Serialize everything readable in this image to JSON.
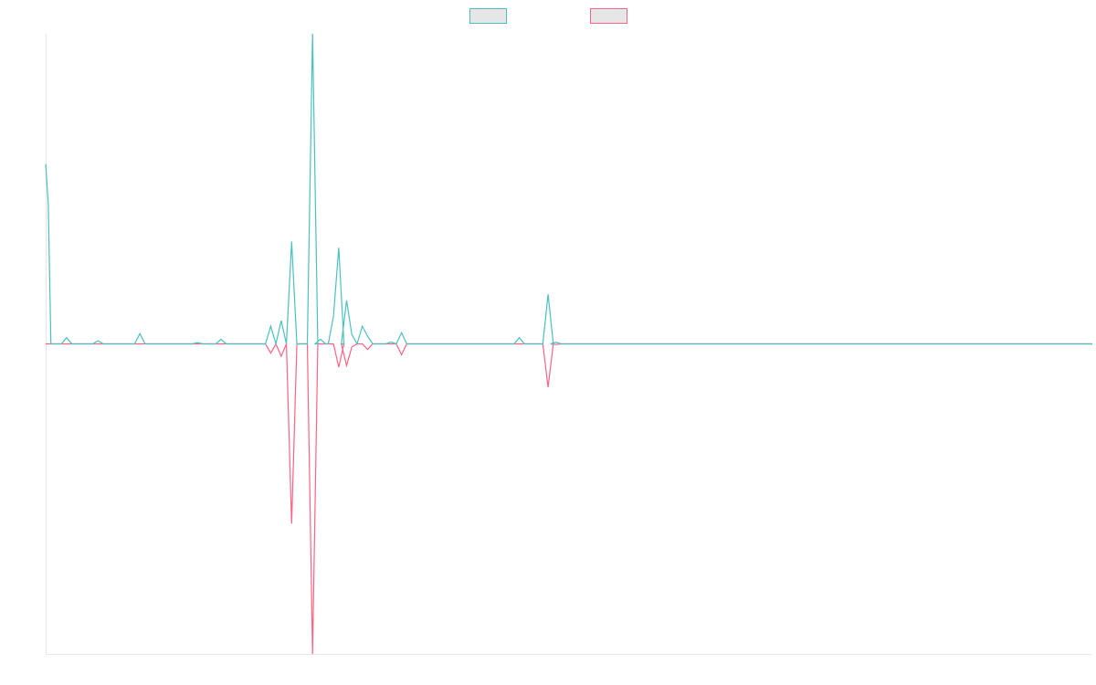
{
  "chart_data": {
    "type": "line",
    "title": "",
    "xlabel": "",
    "ylabel": "",
    "legend_placement": "top-center",
    "grid": false,
    "ylim": [
      -1,
      1
    ],
    "x_count": 200,
    "series": [
      {
        "color": "#4bc0c0",
        "points": [
          {
            "x": 0,
            "y": 0.58
          },
          {
            "x": 0.5,
            "y": 0.45
          },
          {
            "x": 1,
            "y": 0
          },
          {
            "x": 4,
            "y": 0.02
          },
          {
            "x": 10,
            "y": 0.01
          },
          {
            "x": 18,
            "y": 0.033
          },
          {
            "x": 29,
            "y": 0.004
          },
          {
            "x": 33.5,
            "y": 0.015
          },
          {
            "x": 43,
            "y": 0.057
          },
          {
            "x": 45,
            "y": 0.075
          },
          {
            "x": 47,
            "y": 0.33
          },
          {
            "x": 51,
            "y": 1.0
          },
          {
            "x": 52.5,
            "y": 0.015
          },
          {
            "x": 55,
            "y": 0.09
          },
          {
            "x": 56,
            "y": 0.31
          },
          {
            "x": 57.5,
            "y": 0.14
          },
          {
            "x": 58.5,
            "y": 0.03
          },
          {
            "x": 60.5,
            "y": 0.057
          },
          {
            "x": 61.5,
            "y": 0.025
          },
          {
            "x": 66,
            "y": 0.006
          },
          {
            "x": 68,
            "y": 0.036
          },
          {
            "x": 90.5,
            "y": 0.02
          },
          {
            "x": 96,
            "y": 0.16
          },
          {
            "x": 97.5,
            "y": 0.005
          }
        ]
      },
      {
        "color": "#ff6384",
        "points": [
          {
            "x": 0,
            "y": 0
          },
          {
            "x": 43,
            "y": -0.03
          },
          {
            "x": 45,
            "y": -0.04
          },
          {
            "x": 47,
            "y": -0.58
          },
          {
            "x": 51,
            "y": -1.0
          },
          {
            "x": 56,
            "y": -0.075
          },
          {
            "x": 57.5,
            "y": -0.07
          },
          {
            "x": 58.5,
            "y": -0.01
          },
          {
            "x": 61.5,
            "y": -0.018
          },
          {
            "x": 68,
            "y": -0.035
          },
          {
            "x": 96,
            "y": -0.14
          },
          {
            "x": 97.5,
            "y": -0.002
          }
        ]
      }
    ]
  }
}
